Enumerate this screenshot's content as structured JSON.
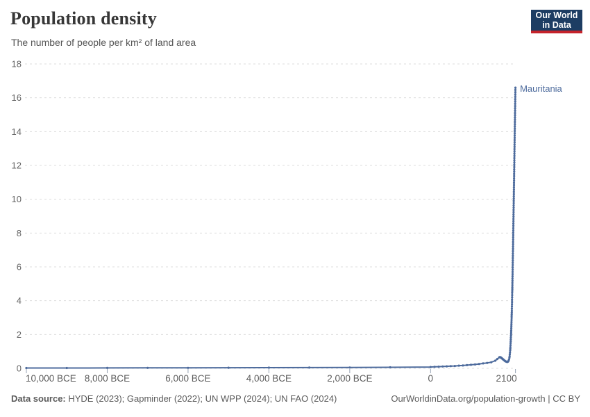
{
  "header": {
    "title": "Population density",
    "subtitle": "The number of people per km² of land area",
    "logo": {
      "line1": "Our World",
      "line2": "in Data",
      "bg_color": "#1d3d63",
      "bar_color": "#c5232b"
    }
  },
  "footer": {
    "source_label": "Data source:",
    "source_text": " HYDE (2023); Gapminder (2022); UN WPP (2024); UN FAO (2024)",
    "credit": "OurWorldinData.org/population-growth | CC BY"
  },
  "chart_data": {
    "type": "line",
    "title": "Population density",
    "subtitle": "The number of people per km² of land area",
    "xlabel": "",
    "ylabel": "People per km² of land area",
    "ylim": [
      0,
      18
    ],
    "yticks": [
      0,
      2,
      4,
      6,
      8,
      10,
      12,
      14,
      16,
      18
    ],
    "xlim_years": [
      -10000,
      2100
    ],
    "xticks": [
      {
        "year": -10000,
        "label": "10,000 BCE"
      },
      {
        "year": -8000,
        "label": "8,000 BCE"
      },
      {
        "year": -6000,
        "label": "6,000 BCE"
      },
      {
        "year": -4000,
        "label": "4,000 BCE"
      },
      {
        "year": -2000,
        "label": "2,000 BCE"
      },
      {
        "year": 0,
        "label": "0"
      },
      {
        "year": 2100,
        "label": "2100"
      }
    ],
    "grid": "horizontal-dashed",
    "legend_position": "end-of-line-label",
    "colors": {
      "line": "#4c6a9c",
      "grid": "#dcdcdc",
      "axis_text": "#5c5c5c",
      "tick": "#97a3b5"
    },
    "series": [
      {
        "name": "Mauritania",
        "color": "#4c6a9c",
        "points": [
          [
            -10000,
            0.02
          ],
          [
            -9000,
            0.02
          ],
          [
            -8000,
            0.025
          ],
          [
            -7000,
            0.03
          ],
          [
            -6000,
            0.03
          ],
          [
            -5000,
            0.035
          ],
          [
            -4000,
            0.04
          ],
          [
            -3000,
            0.045
          ],
          [
            -2000,
            0.05
          ],
          [
            -1000,
            0.06
          ],
          [
            0,
            0.08
          ],
          [
            100,
            0.09
          ],
          [
            200,
            0.1
          ],
          [
            300,
            0.11
          ],
          [
            400,
            0.12
          ],
          [
            500,
            0.13
          ],
          [
            600,
            0.14
          ],
          [
            700,
            0.16
          ],
          [
            800,
            0.17
          ],
          [
            900,
            0.19
          ],
          [
            1000,
            0.21
          ],
          [
            1100,
            0.23
          ],
          [
            1200,
            0.26
          ],
          [
            1300,
            0.29
          ],
          [
            1400,
            0.32
          ],
          [
            1500,
            0.36
          ],
          [
            1600,
            0.45
          ],
          [
            1650,
            0.55
          ],
          [
            1700,
            0.65
          ],
          [
            1710,
            0.66
          ],
          [
            1720,
            0.66
          ],
          [
            1730,
            0.65
          ],
          [
            1740,
            0.64
          ],
          [
            1750,
            0.62
          ],
          [
            1760,
            0.6
          ],
          [
            1770,
            0.58
          ],
          [
            1780,
            0.56
          ],
          [
            1790,
            0.54
          ],
          [
            1800,
            0.52
          ],
          [
            1810,
            0.5
          ],
          [
            1820,
            0.48
          ],
          [
            1830,
            0.46
          ],
          [
            1840,
            0.44
          ],
          [
            1850,
            0.42
          ],
          [
            1860,
            0.41
          ],
          [
            1870,
            0.4
          ],
          [
            1880,
            0.39
          ],
          [
            1890,
            0.38
          ],
          [
            1900,
            0.38
          ],
          [
            1910,
            0.39
          ],
          [
            1920,
            0.41
          ],
          [
            1930,
            0.45
          ],
          [
            1940,
            0.52
          ],
          [
            1950,
            0.63
          ],
          [
            1955,
            0.71
          ],
          [
            1960,
            0.82
          ],
          [
            1965,
            0.93
          ],
          [
            1970,
            1.06
          ],
          [
            1975,
            1.25
          ],
          [
            1980,
            1.49
          ],
          [
            1985,
            1.71
          ],
          [
            1990,
            1.95
          ],
          [
            1995,
            2.25
          ],
          [
            2000,
            2.61
          ],
          [
            2005,
            2.98
          ],
          [
            2010,
            3.4
          ],
          [
            2015,
            3.92
          ],
          [
            2020,
            4.47
          ],
          [
            2023,
            4.79
          ],
          [
            2030,
            5.7
          ],
          [
            2040,
            7.2
          ],
          [
            2050,
            8.7
          ],
          [
            2060,
            10.3
          ],
          [
            2070,
            11.9
          ],
          [
            2080,
            13.5
          ],
          [
            2090,
            15.1
          ],
          [
            2100,
            16.6
          ]
        ]
      }
    ]
  }
}
